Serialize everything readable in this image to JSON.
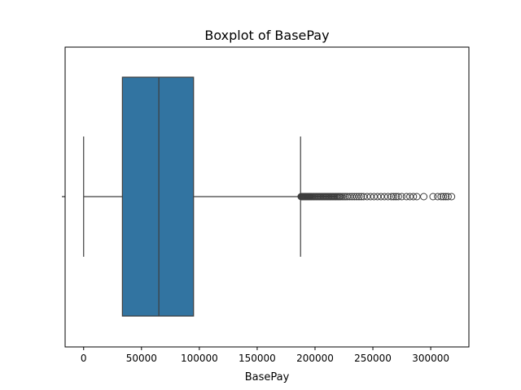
{
  "chart_data": {
    "type": "box",
    "title": "Boxplot of BasePay",
    "xlabel": "BasePay",
    "ylabel": "",
    "orientation": "horizontal",
    "xlim": [
      -16000,
      333000
    ],
    "xticks": [
      0,
      50000,
      100000,
      150000,
      200000,
      250000,
      300000
    ],
    "xtick_labels": [
      "0",
      "50000",
      "100000",
      "150000",
      "200000",
      "250000",
      "300000"
    ],
    "grid": false,
    "box": {
      "whisker_low": 0,
      "q1": 33500,
      "median": 65000,
      "q3": 95000,
      "whisker_high": 187500
    },
    "outliers": [
      188000,
      188500,
      189000,
      189500,
      190000,
      190500,
      191000,
      191500,
      192000,
      192500,
      193000,
      193500,
      194000,
      194500,
      195000,
      195500,
      196000,
      197000,
      198000,
      199000,
      200000,
      201000,
      202000,
      203000,
      204000,
      205000,
      206000,
      207000,
      208000,
      209000,
      210000,
      211000,
      212000,
      213000,
      214000,
      215000,
      216000,
      217000,
      218000,
      219000,
      220000,
      221000,
      222000,
      223500,
      225000,
      226500,
      228000,
      230000,
      232000,
      234000,
      236000,
      238000,
      240000,
      242000,
      245000,
      248000,
      251000,
      254000,
      257000,
      260000,
      263000,
      266000,
      268000,
      270000,
      272000,
      275000,
      279000,
      282000,
      285000,
      288000,
      294000,
      302000,
      306000,
      309000,
      311000,
      313000,
      315000,
      318000
    ],
    "colors": {
      "box_fill": "#3274a1",
      "line": "#3d3d3d"
    }
  }
}
